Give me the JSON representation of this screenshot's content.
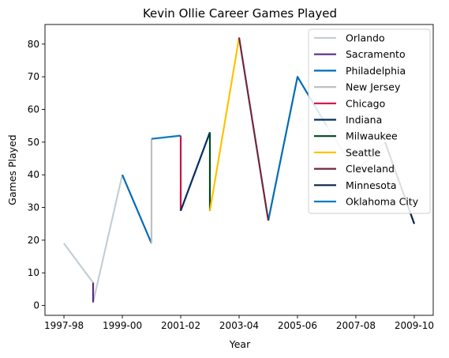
{
  "chart_data": {
    "type": "line",
    "title": "Kevin Ollie Career Games Played",
    "xlabel": "Year",
    "ylabel": "Games Played",
    "xlim": [
      -0.65,
      12.65
    ],
    "ylim": [
      -3,
      86
    ],
    "x_ticks": [
      {
        "x": 0,
        "label": "1997-98"
      },
      {
        "x": 2,
        "label": "1999-00"
      },
      {
        "x": 4,
        "label": "2001-02"
      },
      {
        "x": 6,
        "label": "2003-04"
      },
      {
        "x": 8,
        "label": "2005-06"
      },
      {
        "x": 10,
        "label": "2007-08"
      },
      {
        "x": 12,
        "label": "2009-10"
      }
    ],
    "y_ticks": [
      0,
      10,
      20,
      30,
      40,
      50,
      60,
      70,
      80
    ],
    "grid": false,
    "legend_position": "upper right",
    "series": [
      {
        "name": "Orlando",
        "color": "#c4ced4",
        "points": [
          [
            0,
            19
          ],
          [
            1,
            7
          ],
          [
            1,
            1
          ],
          [
            2,
            40
          ]
        ]
      },
      {
        "name": "Sacramento",
        "color": "#5a2d81",
        "points": [
          [
            1,
            7
          ],
          [
            1,
            1
          ]
        ]
      },
      {
        "name": "Philadelphia",
        "color": "#006bb6",
        "points": [
          [
            2,
            40
          ],
          [
            3,
            19
          ]
        ]
      },
      {
        "name": "New Jersey",
        "color": "#bec0c2",
        "points": [
          [
            3,
            19
          ],
          [
            3,
            51
          ]
        ]
      },
      {
        "name": "Chicago",
        "color": "#ce1141",
        "points": [
          [
            4,
            52
          ],
          [
            4,
            29
          ]
        ]
      },
      {
        "name": "Indiana",
        "color": "#002d62",
        "points": [
          [
            4,
            29
          ],
          [
            5,
            53
          ]
        ]
      },
      {
        "name": "Milwaukee",
        "color": "#00471b",
        "points": [
          [
            5,
            53
          ],
          [
            5,
            29
          ]
        ]
      },
      {
        "name": "Seattle",
        "color": "#ffc200",
        "points": [
          [
            5,
            29
          ],
          [
            6,
            82
          ]
        ]
      },
      {
        "name": "Cleveland",
        "color": "#6f263d",
        "points": [
          [
            6,
            82
          ],
          [
            7,
            26
          ]
        ]
      },
      {
        "name": "Minnesota",
        "color": "#0c2340",
        "points": [
          [
            11,
            50
          ],
          [
            12,
            25
          ]
        ]
      },
      {
        "name": "Oklahoma City",
        "color": "#007ac1",
        "points": [
          [
            3,
            51
          ],
          [
            4,
            52
          ]
        ]
      }
    ],
    "extra_segments": [
      {
        "series": "Philadelphia",
        "color": "#006bb6",
        "points": [
          [
            7,
            26
          ],
          [
            8,
            70
          ],
          [
            9,
            55
          ]
        ]
      },
      {
        "series": "Orlando",
        "color": "#c4ced4",
        "points": [
          [
            9,
            55
          ],
          [
            10,
            41
          ],
          [
            11,
            50
          ]
        ]
      }
    ]
  }
}
